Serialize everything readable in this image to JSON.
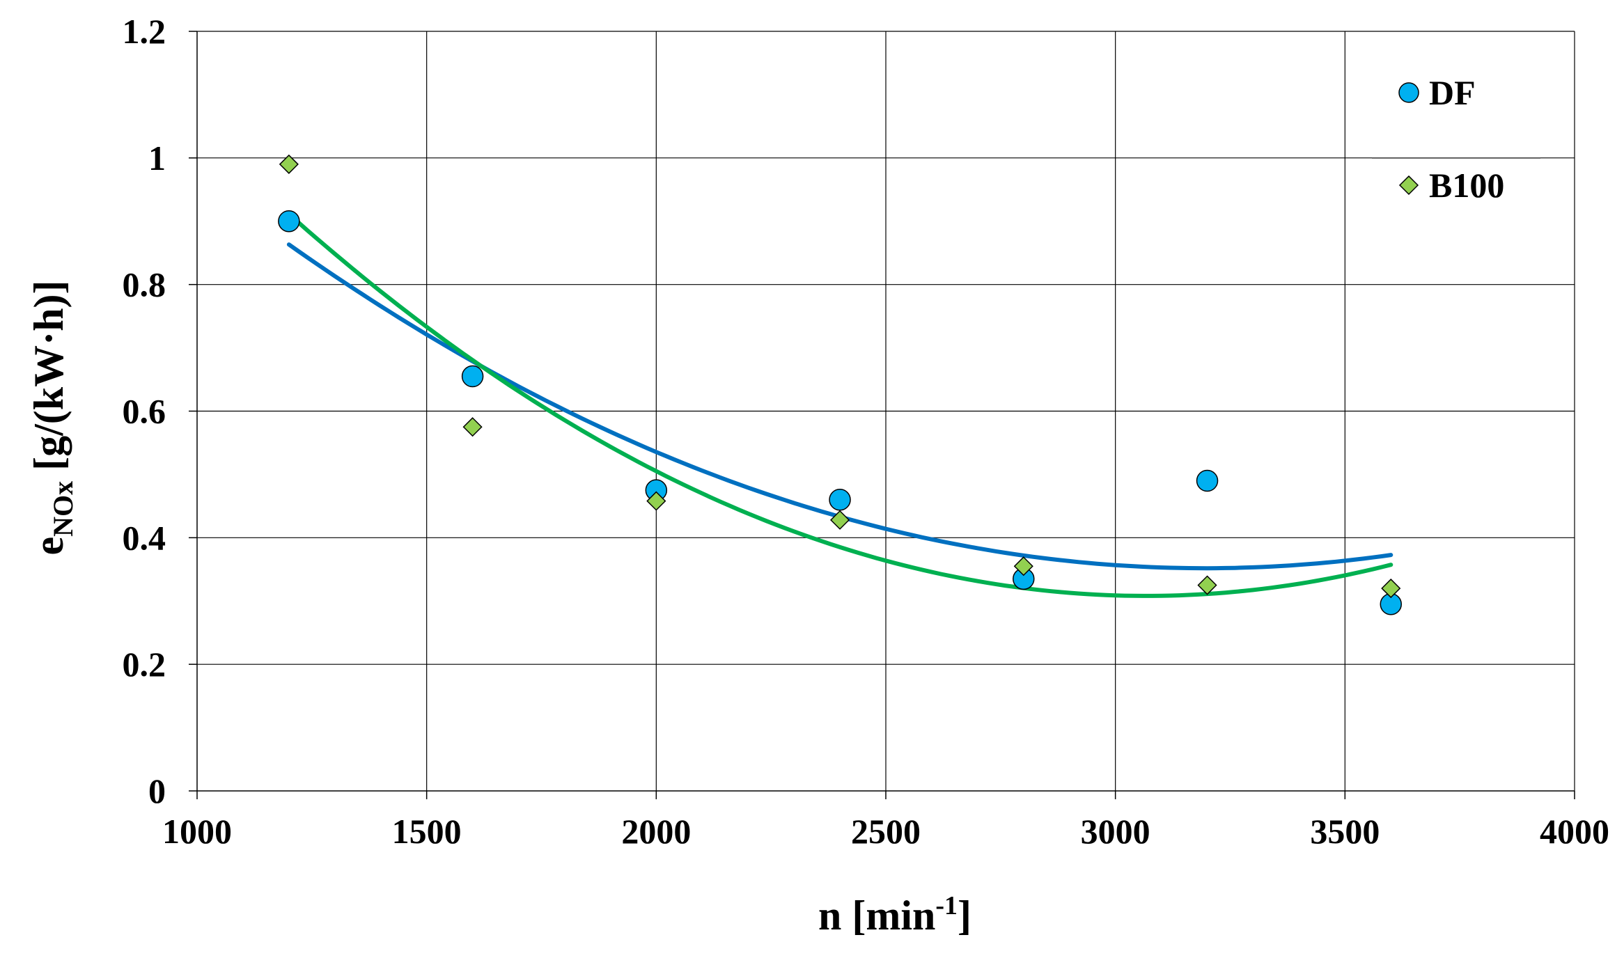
{
  "chart_data": {
    "type": "scatter",
    "title": "",
    "xlabel": {
      "main": "n [min",
      "sup": "-1",
      "tail": "]"
    },
    "ylabel": {
      "e": "e",
      "sub": "NOx",
      "tail": " [g/(kW·h)]"
    },
    "xlim": [
      1000,
      4000
    ],
    "ylim": [
      0,
      1.2
    ],
    "xticks": [
      1000,
      1500,
      2000,
      2500,
      3000,
      3500,
      4000
    ],
    "xtick_labels": [
      "1000",
      "1500",
      "2000",
      "2500",
      "3000",
      "3500",
      "4000"
    ],
    "yticks": [
      0,
      0.2,
      0.4,
      0.6,
      0.8,
      1.0,
      1.2
    ],
    "ytick_labels": [
      "0",
      "0.2",
      "0.4",
      "0.6",
      "0.8",
      "1",
      "1.2"
    ],
    "grid": true,
    "legend_position": "top-right",
    "series": [
      {
        "name": "DF",
        "marker": "circle",
        "marker_color": "#00B0F0",
        "trend_color": "#0070C0",
        "x": [
          1200,
          1600,
          2000,
          2400,
          2800,
          3200,
          3600
        ],
        "y": [
          0.9,
          0.655,
          0.475,
          0.46,
          0.335,
          0.49,
          0.295
        ],
        "trend_x": [
          1200,
          1600,
          2000,
          2400,
          2800,
          3200,
          3600
        ],
        "trend_y": [
          0.862,
          0.68,
          0.537,
          0.433,
          0.369,
          0.353,
          0.373
        ]
      },
      {
        "name": "B100",
        "marker": "diamond",
        "marker_color": "#92D050",
        "trend_color": "#00B050",
        "x": [
          1200,
          1600,
          2000,
          2400,
          2800,
          3200,
          3600
        ],
        "y": [
          0.99,
          0.575,
          0.458,
          0.428,
          0.355,
          0.325,
          0.32
        ],
        "trend_x": [
          1200,
          1600,
          2000,
          2400,
          2800,
          3200,
          3600
        ],
        "trend_y": [
          0.91,
          0.68,
          0.51,
          0.385,
          0.318,
          0.308,
          0.36
        ]
      }
    ]
  }
}
